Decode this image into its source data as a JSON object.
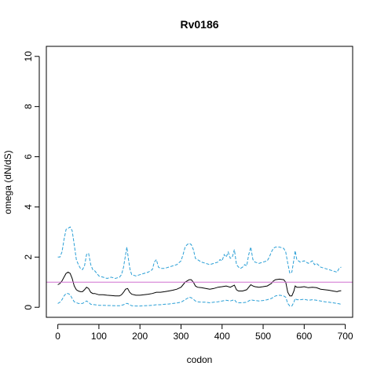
{
  "chart_data": {
    "type": "line",
    "title": "Rv0186",
    "xlabel": "codon",
    "ylabel": "omega (dN/dS)",
    "xlim": [
      -28,
      718
    ],
    "ylim": [
      -0.4,
      10.4
    ],
    "x_ticks": [
      0,
      100,
      200,
      300,
      400,
      500,
      600,
      700
    ],
    "y_ticks": [
      0,
      2,
      4,
      6,
      8,
      10
    ],
    "grid": false,
    "legend": "none",
    "reference_line": {
      "y": 1,
      "color": "#d070d0"
    },
    "series": [
      {
        "style": "upper-bound",
        "color": "#2a9fd6",
        "dash": "dashed",
        "points": [
          [
            0,
            2.0
          ],
          [
            5,
            2.0
          ],
          [
            10,
            2.2
          ],
          [
            15,
            2.7
          ],
          [
            20,
            3.1
          ],
          [
            25,
            3.15
          ],
          [
            30,
            3.2
          ],
          [
            35,
            3.05
          ],
          [
            40,
            2.5
          ],
          [
            45,
            1.9
          ],
          [
            50,
            1.7
          ],
          [
            55,
            1.55
          ],
          [
            60,
            1.5
          ],
          [
            65,
            1.65
          ],
          [
            70,
            2.1
          ],
          [
            75,
            2.15
          ],
          [
            80,
            1.7
          ],
          [
            85,
            1.5
          ],
          [
            90,
            1.45
          ],
          [
            95,
            1.35
          ],
          [
            100,
            1.25
          ],
          [
            110,
            1.2
          ],
          [
            120,
            1.15
          ],
          [
            130,
            1.2
          ],
          [
            140,
            1.15
          ],
          [
            150,
            1.2
          ],
          [
            155,
            1.3
          ],
          [
            160,
            1.6
          ],
          [
            165,
            2.1
          ],
          [
            168,
            2.4
          ],
          [
            172,
            1.9
          ],
          [
            176,
            1.5
          ],
          [
            180,
            1.3
          ],
          [
            190,
            1.25
          ],
          [
            200,
            1.3
          ],
          [
            210,
            1.35
          ],
          [
            220,
            1.4
          ],
          [
            230,
            1.5
          ],
          [
            235,
            1.8
          ],
          [
            240,
            1.9
          ],
          [
            245,
            1.6
          ],
          [
            250,
            1.55
          ],
          [
            260,
            1.55
          ],
          [
            270,
            1.6
          ],
          [
            280,
            1.65
          ],
          [
            290,
            1.7
          ],
          [
            300,
            1.85
          ],
          [
            305,
            2.1
          ],
          [
            310,
            2.4
          ],
          [
            315,
            2.5
          ],
          [
            320,
            2.55
          ],
          [
            325,
            2.5
          ],
          [
            330,
            2.3
          ],
          [
            335,
            1.95
          ],
          [
            340,
            1.9
          ],
          [
            350,
            1.8
          ],
          [
            360,
            1.75
          ],
          [
            370,
            1.7
          ],
          [
            380,
            1.75
          ],
          [
            390,
            1.8
          ],
          [
            395,
            1.9
          ],
          [
            400,
            1.85
          ],
          [
            405,
            2.1
          ],
          [
            410,
            2.0
          ],
          [
            415,
            2.2
          ],
          [
            420,
            1.95
          ],
          [
            425,
            2.0
          ],
          [
            430,
            2.3
          ],
          [
            435,
            1.7
          ],
          [
            440,
            1.6
          ],
          [
            445,
            1.55
          ],
          [
            450,
            1.6
          ],
          [
            455,
            1.7
          ],
          [
            460,
            1.65
          ],
          [
            465,
            2.1
          ],
          [
            470,
            2.4
          ],
          [
            475,
            1.9
          ],
          [
            480,
            1.8
          ],
          [
            490,
            1.75
          ],
          [
            500,
            1.8
          ],
          [
            510,
            1.85
          ],
          [
            515,
            2.0
          ],
          [
            520,
            2.2
          ],
          [
            525,
            2.35
          ],
          [
            530,
            2.4
          ],
          [
            540,
            2.4
          ],
          [
            550,
            2.35
          ],
          [
            555,
            2.2
          ],
          [
            560,
            1.75
          ],
          [
            565,
            1.35
          ],
          [
            570,
            1.4
          ],
          [
            575,
            1.9
          ],
          [
            578,
            2.25
          ],
          [
            582,
            1.9
          ],
          [
            590,
            1.8
          ],
          [
            600,
            1.85
          ],
          [
            610,
            1.75
          ],
          [
            620,
            1.85
          ],
          [
            625,
            1.7
          ],
          [
            630,
            1.75
          ],
          [
            640,
            1.6
          ],
          [
            650,
            1.55
          ],
          [
            660,
            1.5
          ],
          [
            670,
            1.45
          ],
          [
            680,
            1.4
          ],
          [
            685,
            1.55
          ],
          [
            690,
            1.6
          ]
        ]
      },
      {
        "style": "estimate",
        "color": "#000000",
        "dash": "solid",
        "points": [
          [
            0,
            0.9
          ],
          [
            5,
            0.95
          ],
          [
            10,
            1.05
          ],
          [
            15,
            1.2
          ],
          [
            20,
            1.35
          ],
          [
            25,
            1.4
          ],
          [
            30,
            1.35
          ],
          [
            35,
            1.15
          ],
          [
            40,
            0.85
          ],
          [
            45,
            0.7
          ],
          [
            50,
            0.65
          ],
          [
            55,
            0.62
          ],
          [
            60,
            0.62
          ],
          [
            65,
            0.7
          ],
          [
            70,
            0.8
          ],
          [
            75,
            0.75
          ],
          [
            80,
            0.6
          ],
          [
            85,
            0.55
          ],
          [
            90,
            0.55
          ],
          [
            100,
            0.5
          ],
          [
            110,
            0.5
          ],
          [
            120,
            0.48
          ],
          [
            130,
            0.47
          ],
          [
            140,
            0.45
          ],
          [
            150,
            0.45
          ],
          [
            155,
            0.5
          ],
          [
            160,
            0.6
          ],
          [
            165,
            0.72
          ],
          [
            170,
            0.75
          ],
          [
            175,
            0.6
          ],
          [
            180,
            0.52
          ],
          [
            190,
            0.48
          ],
          [
            200,
            0.48
          ],
          [
            210,
            0.5
          ],
          [
            220,
            0.52
          ],
          [
            230,
            0.55
          ],
          [
            240,
            0.6
          ],
          [
            250,
            0.6
          ],
          [
            260,
            0.62
          ],
          [
            270,
            0.65
          ],
          [
            280,
            0.68
          ],
          [
            290,
            0.72
          ],
          [
            300,
            0.8
          ],
          [
            305,
            0.9
          ],
          [
            310,
            1.0
          ],
          [
            315,
            1.05
          ],
          [
            320,
            1.1
          ],
          [
            325,
            1.1
          ],
          [
            330,
            1.0
          ],
          [
            335,
            0.85
          ],
          [
            340,
            0.8
          ],
          [
            350,
            0.78
          ],
          [
            360,
            0.75
          ],
          [
            370,
            0.72
          ],
          [
            380,
            0.75
          ],
          [
            390,
            0.8
          ],
          [
            400,
            0.82
          ],
          [
            410,
            0.85
          ],
          [
            420,
            0.8
          ],
          [
            430,
            0.88
          ],
          [
            435,
            0.7
          ],
          [
            440,
            0.65
          ],
          [
            450,
            0.65
          ],
          [
            460,
            0.7
          ],
          [
            465,
            0.8
          ],
          [
            470,
            0.9
          ],
          [
            475,
            0.85
          ],
          [
            480,
            0.82
          ],
          [
            490,
            0.8
          ],
          [
            500,
            0.82
          ],
          [
            510,
            0.85
          ],
          [
            520,
            0.95
          ],
          [
            525,
            1.05
          ],
          [
            530,
            1.1
          ],
          [
            540,
            1.12
          ],
          [
            550,
            1.1
          ],
          [
            555,
            1.0
          ],
          [
            560,
            0.6
          ],
          [
            565,
            0.45
          ],
          [
            570,
            0.45
          ],
          [
            575,
            0.65
          ],
          [
            578,
            0.85
          ],
          [
            582,
            0.8
          ],
          [
            590,
            0.8
          ],
          [
            600,
            0.82
          ],
          [
            610,
            0.78
          ],
          [
            620,
            0.8
          ],
          [
            630,
            0.78
          ],
          [
            640,
            0.72
          ],
          [
            650,
            0.7
          ],
          [
            660,
            0.68
          ],
          [
            670,
            0.65
          ],
          [
            680,
            0.62
          ],
          [
            685,
            0.65
          ],
          [
            690,
            0.66
          ]
        ]
      },
      {
        "style": "lower-bound",
        "color": "#2a9fd6",
        "dash": "dashed",
        "points": [
          [
            0,
            0.15
          ],
          [
            5,
            0.2
          ],
          [
            10,
            0.3
          ],
          [
            15,
            0.45
          ],
          [
            20,
            0.55
          ],
          [
            25,
            0.55
          ],
          [
            30,
            0.5
          ],
          [
            35,
            0.35
          ],
          [
            40,
            0.22
          ],
          [
            50,
            0.15
          ],
          [
            60,
            0.15
          ],
          [
            65,
            0.2
          ],
          [
            70,
            0.25
          ],
          [
            75,
            0.2
          ],
          [
            80,
            0.12
          ],
          [
            90,
            0.1
          ],
          [
            100,
            0.08
          ],
          [
            110,
            0.08
          ],
          [
            120,
            0.07
          ],
          [
            130,
            0.07
          ],
          [
            140,
            0.06
          ],
          [
            150,
            0.06
          ],
          [
            160,
            0.1
          ],
          [
            165,
            0.15
          ],
          [
            170,
            0.15
          ],
          [
            175,
            0.1
          ],
          [
            180,
            0.06
          ],
          [
            190,
            0.05
          ],
          [
            200,
            0.05
          ],
          [
            210,
            0.06
          ],
          [
            220,
            0.07
          ],
          [
            230,
            0.08
          ],
          [
            240,
            0.1
          ],
          [
            250,
            0.1
          ],
          [
            260,
            0.12
          ],
          [
            270,
            0.13
          ],
          [
            280,
            0.15
          ],
          [
            290,
            0.17
          ],
          [
            300,
            0.2
          ],
          [
            305,
            0.25
          ],
          [
            310,
            0.3
          ],
          [
            315,
            0.35
          ],
          [
            320,
            0.4
          ],
          [
            325,
            0.38
          ],
          [
            330,
            0.32
          ],
          [
            335,
            0.25
          ],
          [
            340,
            0.22
          ],
          [
            350,
            0.2
          ],
          [
            360,
            0.2
          ],
          [
            370,
            0.18
          ],
          [
            380,
            0.2
          ],
          [
            390,
            0.22
          ],
          [
            400,
            0.25
          ],
          [
            410,
            0.28
          ],
          [
            420,
            0.25
          ],
          [
            430,
            0.3
          ],
          [
            435,
            0.2
          ],
          [
            440,
            0.18
          ],
          [
            450,
            0.18
          ],
          [
            460,
            0.2
          ],
          [
            465,
            0.25
          ],
          [
            470,
            0.3
          ],
          [
            475,
            0.28
          ],
          [
            480,
            0.27
          ],
          [
            490,
            0.25
          ],
          [
            500,
            0.27
          ],
          [
            510,
            0.3
          ],
          [
            520,
            0.35
          ],
          [
            525,
            0.4
          ],
          [
            530,
            0.45
          ],
          [
            540,
            0.48
          ],
          [
            550,
            0.45
          ],
          [
            555,
            0.4
          ],
          [
            560,
            0.15
          ],
          [
            565,
            0.05
          ],
          [
            570,
            0.05
          ],
          [
            575,
            0.2
          ],
          [
            578,
            0.35
          ],
          [
            582,
            0.3
          ],
          [
            590,
            0.3
          ],
          [
            600,
            0.32
          ],
          [
            610,
            0.28
          ],
          [
            620,
            0.3
          ],
          [
            630,
            0.28
          ],
          [
            640,
            0.25
          ],
          [
            650,
            0.22
          ],
          [
            660,
            0.2
          ],
          [
            670,
            0.18
          ],
          [
            680,
            0.15
          ],
          [
            685,
            0.14
          ],
          [
            690,
            0.12
          ]
        ]
      }
    ]
  }
}
